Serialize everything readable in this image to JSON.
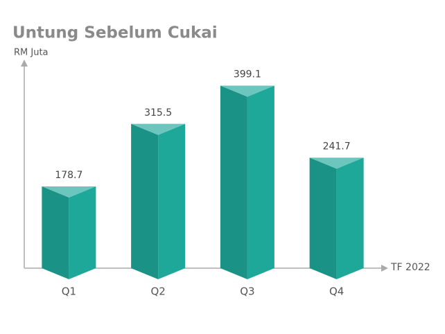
{
  "chart_data": {
    "type": "bar",
    "title": "Untung Sebelum Cukai",
    "y_label": "RM Juta",
    "x_label": "TF 2022",
    "categories": [
      "Q1",
      "Q2",
      "Q3",
      "Q4"
    ],
    "values": [
      178.7,
      315.5,
      399.1,
      241.7
    ],
    "color": "#1ea89a",
    "ylim": [
      0,
      450
    ],
    "grid": false
  }
}
